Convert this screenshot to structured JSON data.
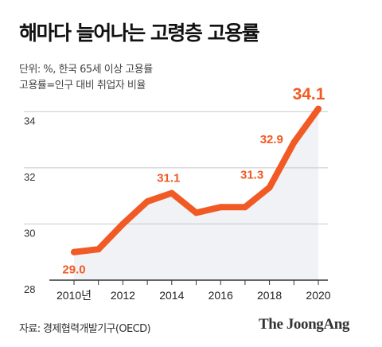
{
  "title": "해마다 늘어나는 고령층 고용률",
  "subtitle_lines": [
    "단위: %, 한국 65세 이상 고용률",
    "고용률=인구 대비 취업자 비율"
  ],
  "source": "자료: 경제협력개발기구(OECD)",
  "brand": "The JoongAng",
  "colors": {
    "line": "#f15a24",
    "area": "#f0f2f5",
    "grid": "#c8c8c8",
    "axis": "#333333",
    "label": "#f15a24"
  },
  "chart_data": {
    "type": "line",
    "x": [
      2010,
      2011,
      2012,
      2013,
      2014,
      2015,
      2016,
      2017,
      2018,
      2019,
      2020
    ],
    "values": [
      29.0,
      29.1,
      30.0,
      30.8,
      31.1,
      30.4,
      30.6,
      30.6,
      31.3,
      32.9,
      34.1
    ],
    "x_tick_labels": [
      "2010년",
      "2012",
      "2014",
      "2016",
      "2018",
      "2020"
    ],
    "y_ticks": [
      28,
      30,
      32,
      34
    ],
    "ylim": [
      28,
      35
    ],
    "data_labels": [
      {
        "x": 2010,
        "text": "29.0"
      },
      {
        "x": 2014,
        "text": "31.1"
      },
      {
        "x": 2018,
        "text": "31.3"
      },
      {
        "x": 2019,
        "text": "32.9"
      },
      {
        "x": 2020,
        "text": "34.1"
      }
    ],
    "grid": true,
    "area_fill": true
  }
}
